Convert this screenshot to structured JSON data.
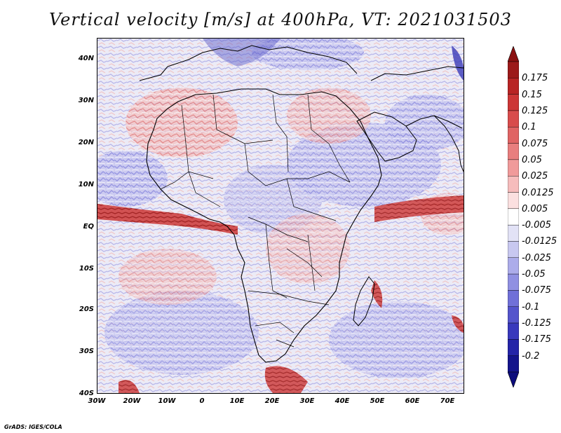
{
  "title": "Vertical velocity [m/s] at 400hPa, VT: 2021031503",
  "footer": "GrADS: IGES/COLA",
  "axes": {
    "lat_labels": [
      "40N",
      "30N",
      "20N",
      "10N",
      "EQ",
      "10S",
      "20S",
      "30S",
      "40S"
    ],
    "lon_labels": [
      "30W",
      "20W",
      "10W",
      "0",
      "10E",
      "20E",
      "30E",
      "40E",
      "50E",
      "60E",
      "70E"
    ]
  },
  "colorbar": {
    "levels": [
      "0.175",
      "0.15",
      "0.125",
      "0.1",
      "0.075",
      "0.05",
      "0.025",
      "0.0125",
      "0.005",
      "-0.005",
      "-0.0125",
      "-0.025",
      "-0.05",
      "-0.075",
      "-0.1",
      "-0.125",
      "-0.175",
      "-0.2"
    ],
    "colors": [
      "#9c1a1a",
      "#b82424",
      "#cc3636",
      "#d84c4c",
      "#e06464",
      "#e87e7e",
      "#f09a9a",
      "#f6bcbc",
      "#fbe0e0",
      "#ffffff",
      "#e2e2f6",
      "#c8c8f0",
      "#acacea",
      "#9090e2",
      "#7070d8",
      "#5454cc",
      "#3838bc",
      "#2424a8",
      "#14148c"
    ],
    "top_arrow_color": "#8a1010",
    "bottom_arrow_color": "#0c0c7c"
  }
}
